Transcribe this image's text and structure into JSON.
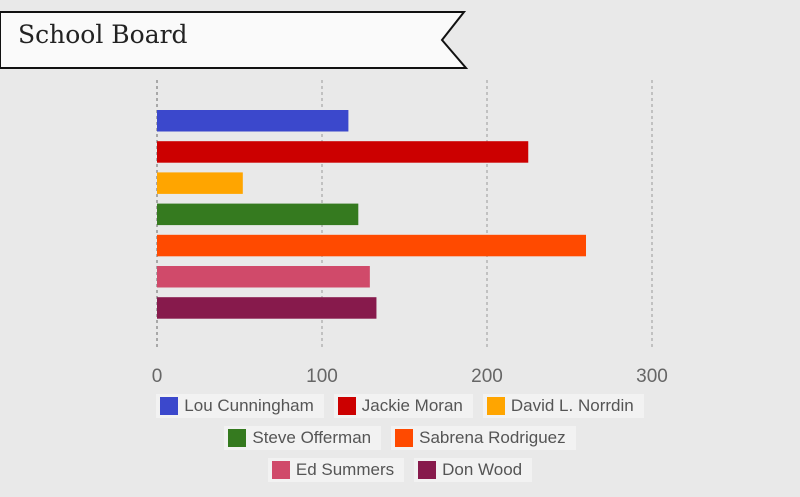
{
  "title": "School Board",
  "chart_data": {
    "type": "bar",
    "orientation": "horizontal",
    "categories": [
      "Lou Cunningham",
      "Jackie Moran",
      "David L. Norrdin",
      "Steve Offerman",
      "Sabrena Rodriguez",
      "Ed Summers",
      "Don Wood"
    ],
    "values": [
      116,
      225,
      52,
      122,
      260,
      129,
      133
    ],
    "colors": [
      "#3b48cc",
      "#cc0000",
      "#ffa500",
      "#357a1f",
      "#ff4a00",
      "#d04a6a",
      "#871a4c"
    ],
    "xticks": [
      "0",
      "100",
      "200",
      "300"
    ],
    "xlim": [
      0,
      300
    ],
    "grid": true,
    "legend": "bottom"
  }
}
